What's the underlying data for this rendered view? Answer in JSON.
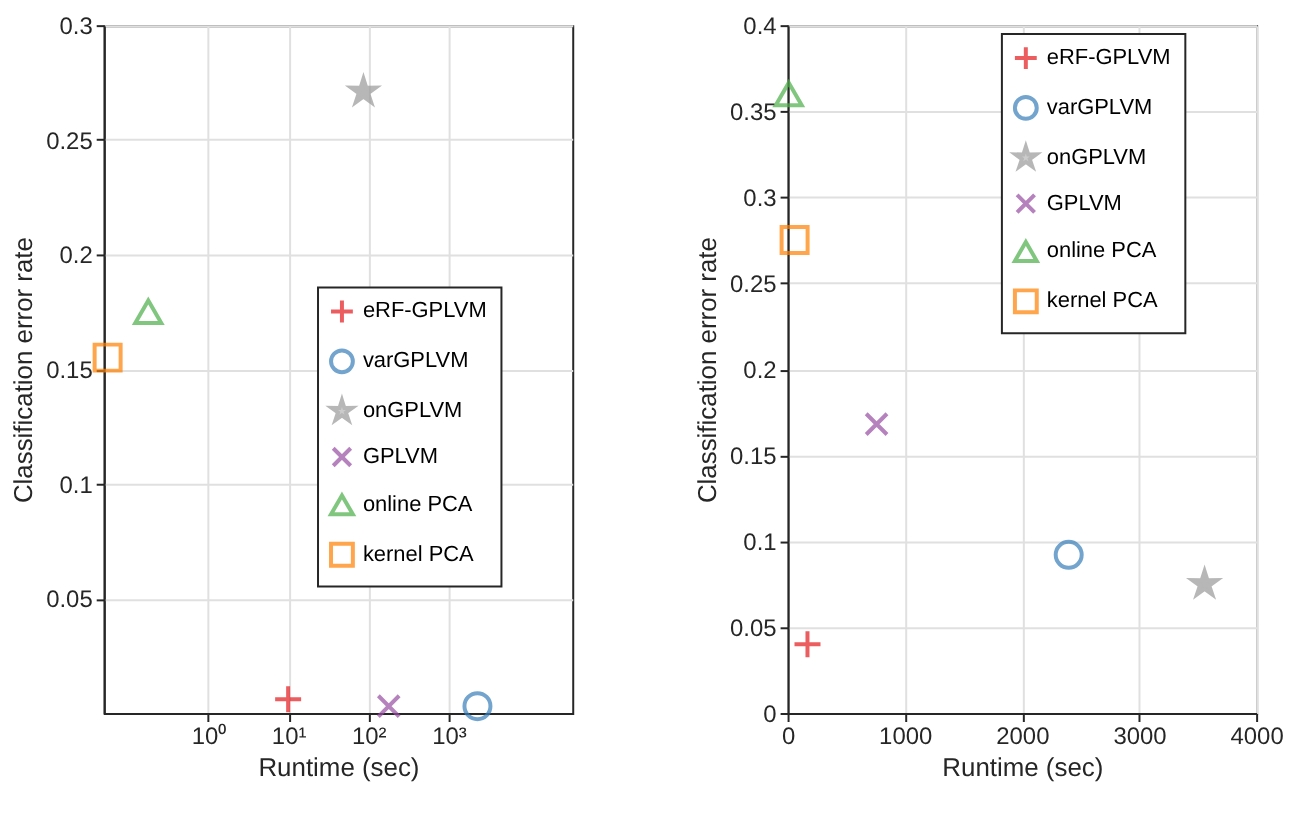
{
  "chart_data": [
    {
      "type": "scatter",
      "xlabel": "Runtime (sec)",
      "ylabel": "Classification error rate",
      "log": "x",
      "xlim": [
        0.05,
        35000
      ],
      "xticks": [
        {
          "value": 1,
          "label": "10⁰"
        },
        {
          "value": 10,
          "label": "10¹"
        },
        {
          "value": 100,
          "label": "10²"
        },
        {
          "value": 1000,
          "label": "10³"
        }
      ],
      "ylim": [
        0,
        0.3
      ],
      "yticks": [
        0.05,
        0.1,
        0.15,
        0.2,
        0.25,
        0.3
      ],
      "grid": true,
      "legend": "right",
      "series": [
        {
          "name": "eRF-GPLVM",
          "color": "#e41a1c",
          "marker": "cross",
          "x": [
            10
          ],
          "values": [
            0.006
          ]
        },
        {
          "name": "varGPLVM",
          "color": "#377eb8",
          "marker": "circle",
          "x": [
            2300
          ],
          "values": [
            0.003
          ]
        },
        {
          "name": "onGPLVM",
          "color": "#999999",
          "marker": "star",
          "x": [
            87
          ],
          "values": [
            0.271
          ]
        },
        {
          "name": "GPLVM",
          "color": "#984ea3",
          "marker": "x",
          "x": [
            180
          ],
          "values": [
            0.003
          ]
        },
        {
          "name": "online PCA",
          "color": "#4daf4a",
          "marker": "triangle",
          "x": [
            0.18
          ],
          "values": [
            0.175
          ]
        },
        {
          "name": "kernel PCA",
          "color": "#ff7f00",
          "marker": "square",
          "x": [
            0.056
          ],
          "values": [
            0.155
          ]
        }
      ]
    },
    {
      "type": "scatter",
      "xlabel": "Runtime (sec)",
      "ylabel": "Classification error rate",
      "xlim": [
        0,
        4000
      ],
      "xticks": [
        0,
        1000,
        2000,
        3000,
        4000
      ],
      "ylim": [
        0,
        0.4
      ],
      "yticks": [
        0,
        0.05,
        0.1,
        0.15,
        0.2,
        0.25,
        0.3,
        0.35,
        0.4
      ],
      "grid": true,
      "legend": "top right",
      "series": [
        {
          "name": "eRF-GPLVM",
          "color": "#e41a1c",
          "marker": "cross",
          "x": [
            170
          ],
          "values": [
            0.04
          ]
        },
        {
          "name": "varGPLVM",
          "color": "#377eb8",
          "marker": "circle",
          "x": [
            2400
          ],
          "values": [
            0.092
          ]
        },
        {
          "name": "onGPLVM",
          "color": "#999999",
          "marker": "star",
          "x": [
            3560
          ],
          "values": [
            0.075
          ]
        },
        {
          "name": "GPLVM",
          "color": "#984ea3",
          "marker": "x",
          "x": [
            760
          ],
          "values": [
            0.168
          ]
        },
        {
          "name": "online PCA",
          "color": "#4daf4a",
          "marker": "triangle",
          "x": [
            10
          ],
          "values": [
            0.36
          ]
        },
        {
          "name": "kernel PCA",
          "color": "#ff7f00",
          "marker": "square",
          "x": [
            60
          ],
          "values": [
            0.275
          ]
        }
      ]
    }
  ]
}
